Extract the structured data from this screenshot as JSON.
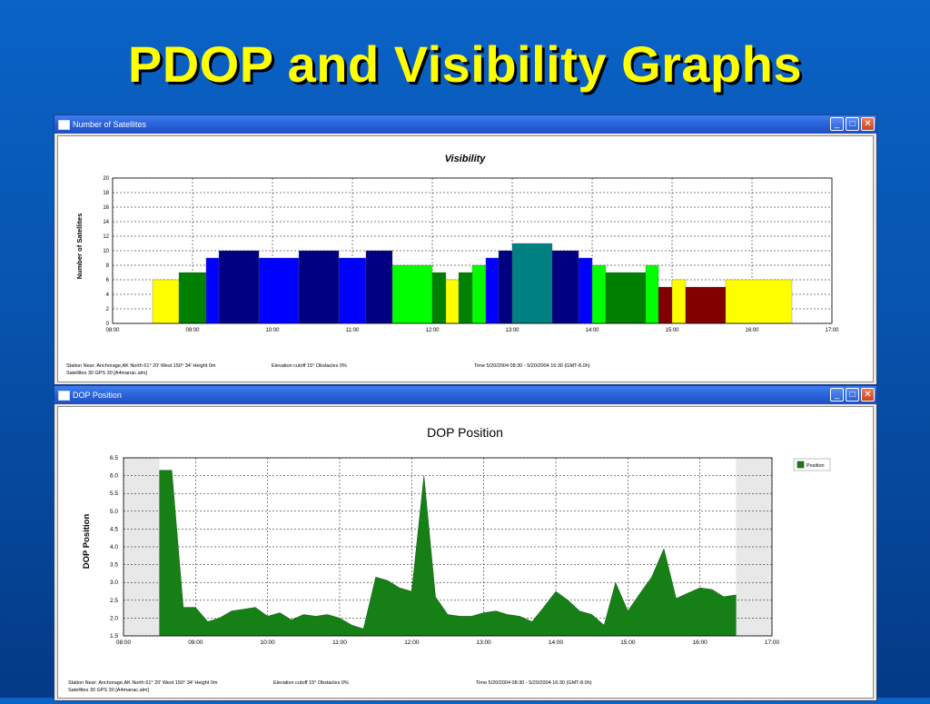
{
  "slide_title": "PDOP and Visibility Graphs",
  "windows": {
    "satellites": {
      "title": "Number of Satellites",
      "footer": {
        "station": "Station Near: Anchorage,AK  North 61° 20'   West 150° 34'   Height 0m",
        "elevation": "Elevation cutoff 15°  Obstacles 0%",
        "time": "Time 5/20/2004 08:30 -  5/20/2004 16:30 (GMT-8.0h)",
        "satellites": "Satellites 30   GPS 30   [A4manac.alm]"
      }
    },
    "dop": {
      "title": "DOP Position",
      "footer": {
        "station": "Station Near: Anchorage,AK  North 61° 20'   West 150° 34'   Height 0m",
        "elevation": "Elevation cutoff 15°  Obstacles 0%",
        "time": "Time 5/20/2004 08:30 -  5/20/2004 16:30 (GMT-8.0h)",
        "satellites": "Satellites 30   GPS 30   [A4manac.alm]"
      }
    }
  },
  "window_buttons": {
    "minimize": "_",
    "maximize": "□",
    "close": "✕"
  },
  "chart_data": [
    {
      "type": "bar",
      "title": "Visibility",
      "xlabel": "",
      "ylabel": "Number of Satellites",
      "xlim": [
        8,
        17
      ],
      "ylim": [
        0,
        20
      ],
      "y_ticks": [
        "0",
        "2",
        "4",
        "6",
        "8",
        "10",
        "12",
        "14",
        "16",
        "18",
        "20"
      ],
      "x_ticks": [
        "08:00",
        "09:00",
        "10:00",
        "11:00",
        "12:00",
        "13:00",
        "14:00",
        "15:00",
        "16:00",
        "17:00"
      ],
      "grid": true,
      "bars": [
        {
          "start": 8.5,
          "end": 8.83,
          "value": 6,
          "color": "#ffff00"
        },
        {
          "start": 8.83,
          "end": 9.17,
          "value": 7,
          "color": "#008000"
        },
        {
          "start": 9.17,
          "end": 9.33,
          "value": 9,
          "color": "#0000ff"
        },
        {
          "start": 9.33,
          "end": 9.83,
          "value": 10,
          "color": "#000080"
        },
        {
          "start": 9.83,
          "end": 10.33,
          "value": 9,
          "color": "#0000ff"
        },
        {
          "start": 10.33,
          "end": 10.83,
          "value": 10,
          "color": "#000080"
        },
        {
          "start": 10.83,
          "end": 11.17,
          "value": 9,
          "color": "#0000ff"
        },
        {
          "start": 11.17,
          "end": 11.5,
          "value": 10,
          "color": "#000080"
        },
        {
          "start": 11.5,
          "end": 12.0,
          "value": 8,
          "color": "#00ff00"
        },
        {
          "start": 12.0,
          "end": 12.17,
          "value": 7,
          "color": "#008000"
        },
        {
          "start": 12.17,
          "end": 12.33,
          "value": 6,
          "color": "#ffff00"
        },
        {
          "start": 12.33,
          "end": 12.5,
          "value": 7,
          "color": "#008000"
        },
        {
          "start": 12.5,
          "end": 12.67,
          "value": 8,
          "color": "#00ff00"
        },
        {
          "start": 12.67,
          "end": 12.83,
          "value": 9,
          "color": "#0000ff"
        },
        {
          "start": 12.83,
          "end": 13.0,
          "value": 10,
          "color": "#000080"
        },
        {
          "start": 13.0,
          "end": 13.5,
          "value": 11,
          "color": "#008080"
        },
        {
          "start": 13.5,
          "end": 13.83,
          "value": 10,
          "color": "#000080"
        },
        {
          "start": 13.83,
          "end": 14.0,
          "value": 9,
          "color": "#0000ff"
        },
        {
          "start": 14.0,
          "end": 14.17,
          "value": 8,
          "color": "#00ff00"
        },
        {
          "start": 14.17,
          "end": 14.67,
          "value": 7,
          "color": "#008000"
        },
        {
          "start": 14.67,
          "end": 14.83,
          "value": 8,
          "color": "#00ff00"
        },
        {
          "start": 14.83,
          "end": 15.0,
          "value": 5,
          "color": "#800000"
        },
        {
          "start": 15.0,
          "end": 15.17,
          "value": 6,
          "color": "#ffff00"
        },
        {
          "start": 15.17,
          "end": 15.67,
          "value": 5,
          "color": "#800000"
        },
        {
          "start": 15.67,
          "end": 16.5,
          "value": 6,
          "color": "#ffff00"
        }
      ]
    },
    {
      "type": "area",
      "title": "DOP Position",
      "xlabel": "",
      "ylabel": "DOP Position",
      "xlim": [
        8,
        17
      ],
      "ylim": [
        1.5,
        6.5
      ],
      "y_ticks": [
        "1.5",
        "2.0",
        "2.5",
        "3.0",
        "3.5",
        "4.0",
        "4.5",
        "5.0",
        "5.5",
        "6.0",
        "6.5"
      ],
      "x_ticks": [
        "08:00",
        "09:00",
        "10:00",
        "11:00",
        "12:00",
        "13:00",
        "14:00",
        "15:00",
        "16:00",
        "17:00"
      ],
      "grid": true,
      "legend": {
        "position": "top-right",
        "entries": [
          "Position"
        ]
      },
      "shaded_ranges": [
        [
          8.0,
          8.5
        ],
        [
          16.5,
          17.0
        ]
      ],
      "series": [
        {
          "name": "Position",
          "color": "#168016",
          "x": [
            8.5,
            8.67,
            8.83,
            9.0,
            9.17,
            9.33,
            9.5,
            9.67,
            9.83,
            10.0,
            10.17,
            10.33,
            10.5,
            10.67,
            10.83,
            11.0,
            11.17,
            11.33,
            11.5,
            11.67,
            11.83,
            12.0,
            12.17,
            12.33,
            12.5,
            12.67,
            12.83,
            13.0,
            13.17,
            13.33,
            13.5,
            13.67,
            13.83,
            14.0,
            14.17,
            14.33,
            14.5,
            14.67,
            14.83,
            15.0,
            15.17,
            15.33,
            15.5,
            15.67,
            15.83,
            16.0,
            16.17,
            16.33,
            16.5
          ],
          "y": [
            6.15,
            6.15,
            2.3,
            2.3,
            1.9,
            2.0,
            2.2,
            2.25,
            2.3,
            2.05,
            2.15,
            1.95,
            2.1,
            2.05,
            2.1,
            2.0,
            1.8,
            1.7,
            3.15,
            3.05,
            2.85,
            2.75,
            6.0,
            2.6,
            2.1,
            2.05,
            2.05,
            2.15,
            2.2,
            2.1,
            2.05,
            1.9,
            2.3,
            2.75,
            2.5,
            2.2,
            2.1,
            1.8,
            3.0,
            2.2,
            2.7,
            3.15,
            3.95,
            2.55,
            2.7,
            2.85,
            2.8,
            2.6,
            2.65
          ]
        }
      ]
    }
  ]
}
